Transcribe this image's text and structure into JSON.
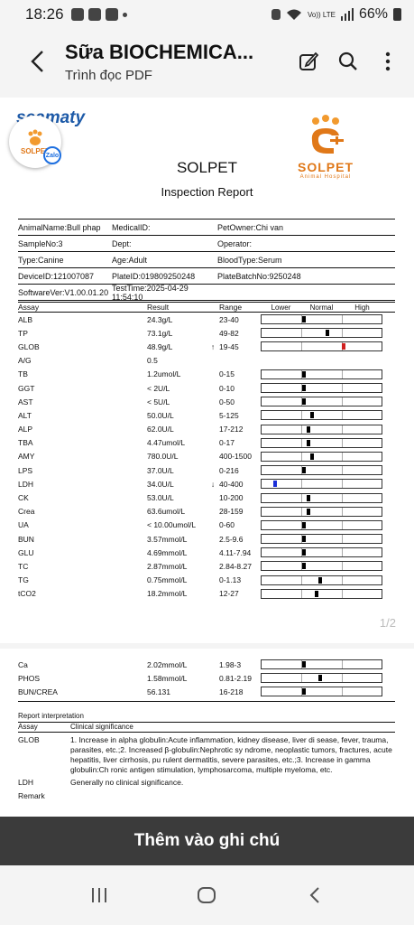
{
  "status": {
    "time": "18:26",
    "battery": "66%",
    "net": "Vo)) LTE"
  },
  "appbar": {
    "title": "Sữa BIOCHEMICA...",
    "subtitle": "Trình đọc PDF"
  },
  "doc": {
    "brand_left": "seamaty",
    "badge_label": "SOLPET",
    "zalo_label": "Zalo",
    "logo_brand": "SOLPET",
    "logo_sub": "Animal Hospital",
    "title": "SOLPET",
    "subtitle": "Inspection Report",
    "info": [
      [
        "AnimalName:Bull phap",
        "MedicalID:",
        "PetOwner:Chi van"
      ],
      [
        "SampleNo:3",
        "Dept:",
        "Operator:"
      ],
      [
        "Type:Canine",
        "Age:Adult",
        "BloodType:Serum"
      ],
      [
        "DeviceID:121007087",
        "PlateID:019809250248",
        "PlateBatchNo:9250248"
      ],
      [
        "SoftwareVer:V1.00.01.20",
        "TestTime:2025-04-29 11:54:10",
        ""
      ]
    ],
    "table_headers": {
      "assay": "Assay",
      "result": "Result",
      "range": "Range",
      "lower": "Lower",
      "normal": "Normal",
      "high": "High"
    },
    "rows": [
      {
        "assay": "ALB",
        "result": "24.3g/L",
        "flag": "",
        "range": "23-40",
        "pos": 0.345,
        "color": "#000000"
      },
      {
        "assay": "TP",
        "result": "73.1g/L",
        "flag": "",
        "range": "49-82",
        "pos": 0.545,
        "color": "#000000"
      },
      {
        "assay": "GLOB",
        "result": "48.9g/L",
        "flag": "↑",
        "range": "19-45",
        "pos": 0.68,
        "color": "#d02020"
      },
      {
        "assay": "A/G",
        "result": "0.5",
        "flag": "",
        "range": "",
        "pos": null,
        "color": ""
      },
      {
        "assay": "TB",
        "result": "1.2umol/L",
        "flag": "",
        "range": "0-15",
        "pos": 0.345,
        "color": "#000000"
      },
      {
        "assay": "GGT",
        "result": "< 2U/L",
        "flag": "",
        "range": "0-10",
        "pos": 0.345,
        "color": "#000000"
      },
      {
        "assay": "AST",
        "result": "< 5U/L",
        "flag": "",
        "range": "0-50",
        "pos": 0.345,
        "color": "#000000"
      },
      {
        "assay": "ALT",
        "result": "50.0U/L",
        "flag": "",
        "range": "5-125",
        "pos": 0.41,
        "color": "#000000"
      },
      {
        "assay": "ALP",
        "result": "62.0U/L",
        "flag": "",
        "range": "17-212",
        "pos": 0.38,
        "color": "#000000"
      },
      {
        "assay": "TBA",
        "result": "4.47umol/L",
        "flag": "",
        "range": "0-17",
        "pos": 0.38,
        "color": "#000000"
      },
      {
        "assay": "AMY",
        "result": "780.0U/L",
        "flag": "",
        "range": "400-1500",
        "pos": 0.41,
        "color": "#000000"
      },
      {
        "assay": "LPS",
        "result": "37.0U/L",
        "flag": "",
        "range": "0-216",
        "pos": 0.345,
        "color": "#000000"
      },
      {
        "assay": "LDH",
        "result": "34.0U/L",
        "flag": "↓",
        "range": "40-400",
        "pos": 0.1,
        "color": "#1a2ed8"
      },
      {
        "assay": "CK",
        "result": "53.0U/L",
        "flag": "",
        "range": "10-200",
        "pos": 0.38,
        "color": "#000000"
      },
      {
        "assay": "Crea",
        "result": "63.6umol/L",
        "flag": "",
        "range": "28-159",
        "pos": 0.38,
        "color": "#000000"
      },
      {
        "assay": "UA",
        "result": "< 10.00umol/L",
        "flag": "",
        "range": "0-60",
        "pos": 0.345,
        "color": "#000000"
      },
      {
        "assay": "BUN",
        "result": "3.57mmol/L",
        "flag": "",
        "range": "2.5-9.6",
        "pos": 0.345,
        "color": "#000000"
      },
      {
        "assay": "GLU",
        "result": "4.69mmol/L",
        "flag": "",
        "range": "4.11-7.94",
        "pos": 0.345,
        "color": "#000000"
      },
      {
        "assay": "TC",
        "result": "2.87mmol/L",
        "flag": "",
        "range": "2.84-8.27",
        "pos": 0.345,
        "color": "#000000"
      },
      {
        "assay": "TG",
        "result": "0.75mmol/L",
        "flag": "",
        "range": "0-1.13",
        "pos": 0.48,
        "color": "#000000"
      },
      {
        "assay": "tCO2",
        "result": "18.2mmol/L",
        "flag": "",
        "range": "12-27",
        "pos": 0.45,
        "color": "#000000"
      }
    ],
    "page_indicator": "1/2",
    "rows2": [
      {
        "assay": "Ca",
        "result": "2.02mmol/L",
        "flag": "",
        "range": "1.98-3",
        "pos": 0.345,
        "color": "#000000"
      },
      {
        "assay": "PHOS",
        "result": "1.58mmol/L",
        "flag": "",
        "range": "0.81-2.19",
        "pos": 0.48,
        "color": "#000000"
      },
      {
        "assay": "BUN/CREA",
        "result": "56.131",
        "flag": "",
        "range": "16-218",
        "pos": 0.345,
        "color": "#000000"
      }
    ],
    "interp_title": "Report interpretation",
    "interp_headers": {
      "assay": "Assay",
      "significance": "Clinical significance"
    },
    "interp_rows": [
      {
        "assay": "GLOB",
        "text": "1. Increase in alpha globulin:Acute inflammation, kidney disease, liver di sease, fever, trauma, parasites, etc.;2. Increased β-globulin:Nephrotic sy ndrome, neoplastic tumors, fractures, acute hepatitis, liver cirrhosis, pu rulent dermatitis, severe parasites, etc.;3. Increase in gamma globulin:Ch ronic antigen stimulation, lymphosarcoma, multiple myeloma, etc."
      },
      {
        "assay": "LDH",
        "text": "Generally no clinical significance."
      }
    ],
    "remark": "Remark"
  },
  "add_note_label": "Thêm vào ghi chú"
}
